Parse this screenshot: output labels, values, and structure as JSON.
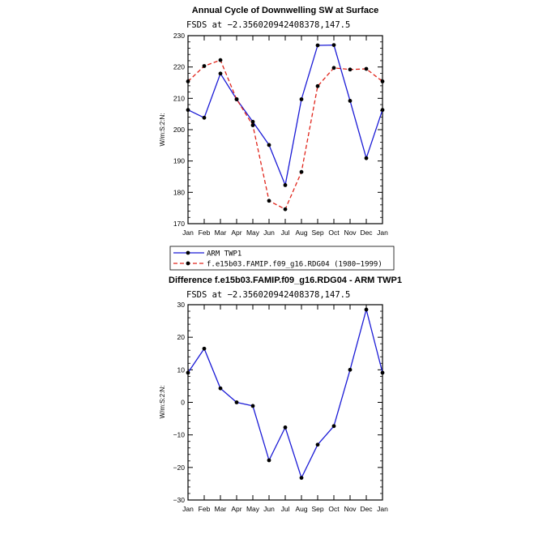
{
  "chart_data": [
    {
      "type": "line",
      "title": "Annual Cycle of Downwelling SW at Surface",
      "subtitle": "FSDS at −2.356020942408378,147.5",
      "ylabel": "W/m:S:2:N:",
      "categories": [
        "Jan",
        "Feb",
        "Mar",
        "Apr",
        "May",
        "Jun",
        "Jul",
        "Aug",
        "Sep",
        "Oct",
        "Nov",
        "Dec",
        "Jan"
      ],
      "ylim": [
        170,
        230
      ],
      "yticks": [
        "170",
        "180",
        "190",
        "200",
        "210",
        "220",
        "230"
      ],
      "series": [
        {
          "name": "ARM TWP1",
          "color": "#1a1ad6",
          "dash": "solid",
          "values": [
            206.3,
            203.8,
            217.9,
            209.7,
            202.5,
            195.1,
            182.3,
            209.7,
            226.9,
            227.0,
            209.2,
            190.9,
            206.3
          ]
        },
        {
          "name": "f.e15b03.FAMIP.f09_g16.RDG04 (1980−1999)",
          "color": "#e0241a",
          "dash": "dashed",
          "values": [
            215.4,
            220.3,
            222.2,
            209.7,
            201.4,
            177.3,
            174.6,
            186.5,
            213.9,
            219.7,
            219.2,
            219.4,
            215.4
          ]
        }
      ],
      "legend_position": "below"
    },
    {
      "type": "line",
      "title": "Difference f.e15b03.FAMIP.f09_g16.RDG04 - ARM TWP1",
      "subtitle": "FSDS at −2.356020942408378,147.5",
      "ylabel": "W/m:S:2:N:",
      "categories": [
        "Jan",
        "Feb",
        "Mar",
        "Apr",
        "May",
        "Jun",
        "Jul",
        "Aug",
        "Sep",
        "Oct",
        "Nov",
        "Dec",
        "Jan"
      ],
      "ylim": [
        -30,
        30
      ],
      "yticks": [
        "−30",
        "−20",
        "−10",
        "0",
        "10",
        "20",
        "30"
      ],
      "series": [
        {
          "color": "#1a1ad6",
          "dash": "solid",
          "values": [
            9.1,
            16.5,
            4.3,
            0.0,
            -1.1,
            -17.8,
            -7.7,
            -23.2,
            -13.0,
            -7.3,
            10.0,
            28.5,
            9.1
          ]
        }
      ]
    }
  ]
}
